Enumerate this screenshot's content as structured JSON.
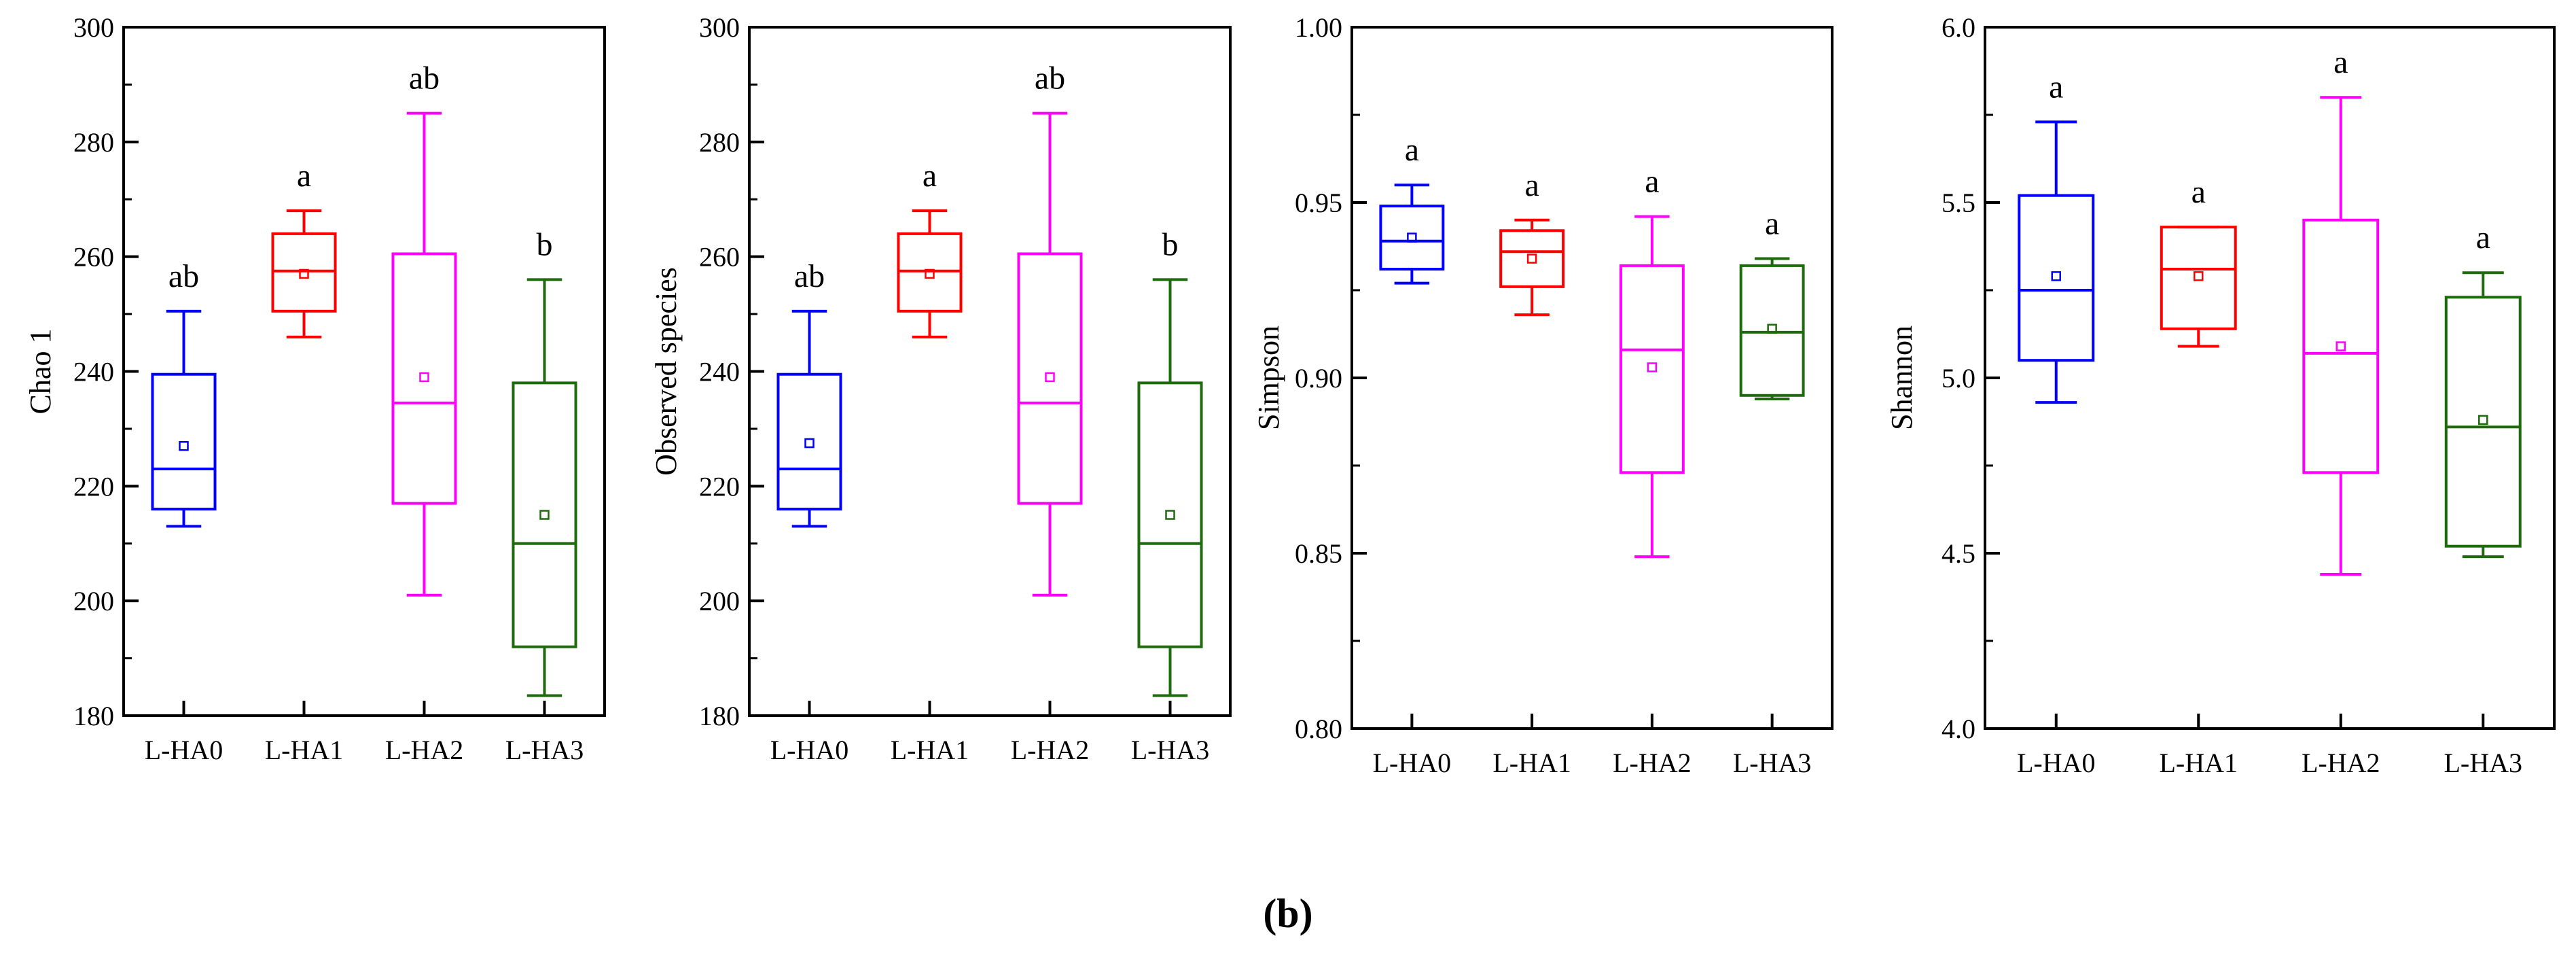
{
  "figure_label": "(b)",
  "colors": {
    "L-HA0": "#0000ff",
    "L-HA1": "#ff0000",
    "L-HA2": "#ff00ff",
    "L-HA3": "#1e6b0d",
    "axis": "#000000"
  },
  "chart_data": [
    {
      "type": "box",
      "ylabel": "Chao 1",
      "xlabel": "",
      "ylim": [
        180,
        300
      ],
      "yticks": [
        180,
        200,
        220,
        240,
        260,
        280,
        300
      ],
      "yticklabels": [
        "180",
        "200",
        "220",
        "240",
        "260",
        "280",
        "300"
      ],
      "categories": [
        "L-HA0",
        "L-HA1",
        "L-HA2",
        "L-HA3"
      ],
      "boxes": [
        {
          "min": 213,
          "q1": 216,
          "median": 223,
          "q3": 239.5,
          "max": 250.5,
          "mean": 227,
          "letter": "ab"
        },
        {
          "min": 246,
          "q1": 250.5,
          "median": 257.5,
          "q3": 264,
          "max": 268,
          "mean": 257,
          "letter": "a"
        },
        {
          "min": 201,
          "q1": 217,
          "median": 234.5,
          "q3": 260.5,
          "max": 285,
          "mean": 239,
          "letter": "ab"
        },
        {
          "min": 183.5,
          "q1": 192,
          "median": 210,
          "q3": 238,
          "max": 256,
          "mean": 215,
          "letter": "b"
        }
      ]
    },
    {
      "type": "box",
      "ylabel": "Observed species",
      "xlabel": "",
      "ylim": [
        180,
        300
      ],
      "yticks": [
        180,
        200,
        220,
        240,
        260,
        280,
        300
      ],
      "yticklabels": [
        "180",
        "200",
        "220",
        "240",
        "260",
        "280",
        "300"
      ],
      "categories": [
        "L-HA0",
        "L-HA1",
        "L-HA2",
        "L-HA3"
      ],
      "boxes": [
        {
          "min": 213,
          "q1": 216,
          "median": 223,
          "q3": 239.5,
          "max": 250.5,
          "mean": 227.5,
          "letter": "ab"
        },
        {
          "min": 246,
          "q1": 250.5,
          "median": 257.5,
          "q3": 264,
          "max": 268,
          "mean": 257,
          "letter": "a"
        },
        {
          "min": 201,
          "q1": 217,
          "median": 234.5,
          "q3": 260.5,
          "max": 285,
          "mean": 239,
          "letter": "ab"
        },
        {
          "min": 183.5,
          "q1": 192,
          "median": 210,
          "q3": 238,
          "max": 256,
          "mean": 215,
          "letter": "b"
        }
      ]
    },
    {
      "type": "box",
      "ylabel": "Simpson",
      "xlabel": "",
      "ylim": [
        0.8,
        1.0
      ],
      "yticks": [
        0.8,
        0.85,
        0.9,
        0.95,
        1.0
      ],
      "yticklabels": [
        "0.80",
        "0.85",
        "0.90",
        "0.95",
        "1.00"
      ],
      "categories": [
        "L-HA0",
        "L-HA1",
        "L-HA2",
        "L-HA3"
      ],
      "boxes": [
        {
          "min": 0.927,
          "q1": 0.931,
          "median": 0.939,
          "q3": 0.949,
          "max": 0.955,
          "mean": 0.94,
          "letter": "a"
        },
        {
          "min": 0.918,
          "q1": 0.926,
          "median": 0.936,
          "q3": 0.942,
          "max": 0.945,
          "mean": 0.934,
          "letter": "a"
        },
        {
          "min": 0.849,
          "q1": 0.873,
          "median": 0.908,
          "q3": 0.932,
          "max": 0.946,
          "mean": 0.903,
          "letter": "a"
        },
        {
          "min": 0.894,
          "q1": 0.895,
          "median": 0.913,
          "q3": 0.932,
          "max": 0.934,
          "mean": 0.914,
          "letter": "a"
        }
      ]
    },
    {
      "type": "box",
      "ylabel": "Shannon",
      "xlabel": "",
      "ylim": [
        4.0,
        6.0
      ],
      "yticks": [
        4.0,
        4.5,
        5.0,
        5.5,
        6.0
      ],
      "yticklabels": [
        "4.0",
        "4.5",
        "5.0",
        "5.5",
        "6.0"
      ],
      "categories": [
        "L-HA0",
        "L-HA1",
        "L-HA2",
        "L-HA3"
      ],
      "boxes": [
        {
          "min": 4.93,
          "q1": 5.05,
          "median": 5.25,
          "q3": 5.52,
          "max": 5.73,
          "mean": 5.29,
          "letter": "a"
        },
        {
          "min": 5.09,
          "q1": 5.14,
          "median": 5.31,
          "q3": 5.43,
          "max": 5.43,
          "mean": 5.29,
          "letter": "a"
        },
        {
          "min": 4.44,
          "q1": 4.73,
          "median": 5.07,
          "q3": 5.45,
          "max": 5.8,
          "mean": 5.09,
          "letter": "a"
        },
        {
          "min": 4.49,
          "q1": 4.52,
          "median": 4.86,
          "q3": 5.23,
          "max": 5.3,
          "mean": 4.88,
          "letter": "a"
        }
      ]
    }
  ]
}
